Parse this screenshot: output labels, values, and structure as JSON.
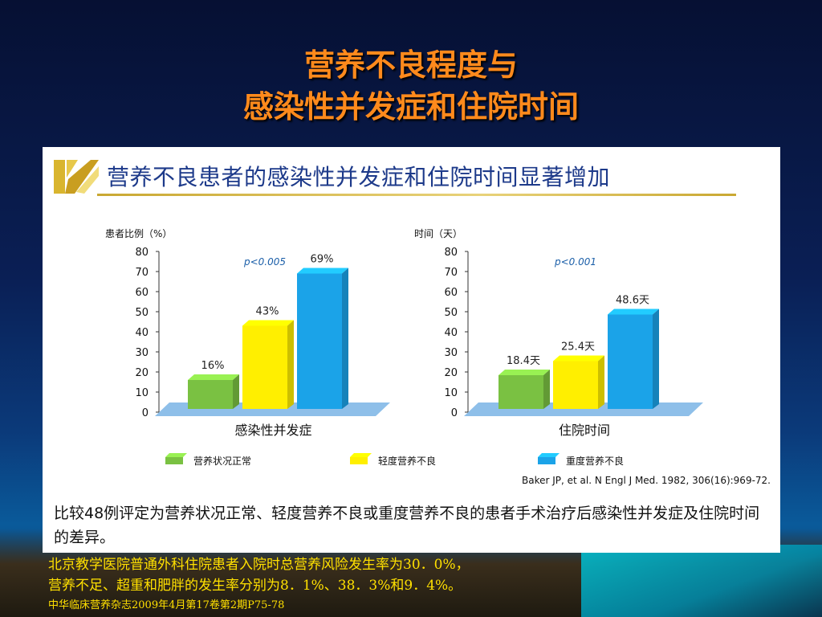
{
  "slide": {
    "title_line1": "营养不良程度与",
    "title_line2": "感染性并发症和住院时间"
  },
  "panel": {
    "heading": "营养不良患者的感染性并发症和住院时间显著增加",
    "citation": "Baker JP, et al. N Engl J Med. 1982, 306(16):969-72.",
    "caption": "比较48例评定为营养状况正常、轻度营养不良或重度营养不良的患者手术治疗后感染性并发症及住院时间的差异。"
  },
  "legend": [
    "营养状况正常",
    "轻度营养不良",
    "重度营养不良"
  ],
  "colors": {
    "normal": "#7ac142",
    "mild": "#ffef00",
    "severe": "#1ba3e8",
    "title": "#ff8a1c",
    "footer": "#ffe000"
  },
  "chart_data": [
    {
      "type": "bar",
      "ylabel": "患者比例（%）",
      "xlabel": "感染性并发症",
      "ylim": [
        0,
        80
      ],
      "yticks": [
        0,
        10,
        20,
        30,
        40,
        50,
        60,
        70,
        80
      ],
      "pvalue": "p<0.005",
      "categories": [
        "营养状况正常",
        "轻度营养不良",
        "重度营养不良"
      ],
      "values": [
        16,
        43,
        69
      ],
      "data_labels": [
        "16%",
        "43%",
        "69%"
      ]
    },
    {
      "type": "bar",
      "ylabel": "时间（天）",
      "xlabel": "住院时间",
      "ylim": [
        0,
        80
      ],
      "yticks": [
        0,
        10,
        20,
        30,
        40,
        50,
        60,
        70,
        80
      ],
      "pvalue": "p<0.001",
      "categories": [
        "营养状况正常",
        "轻度营养不良",
        "重度营养不良"
      ],
      "values": [
        18.4,
        25.4,
        48.6
      ],
      "data_labels": [
        "18.4天",
        "25.4天",
        "48.6天"
      ]
    }
  ],
  "footer": {
    "line1": "北京教学医院普通外科住院患者入院时总营养风险发生率为30．0%，",
    "line2": "营养不足、超重和肥胖的发生率分别为8．1%、38．3%和9．4%。",
    "source": "中华临床营养杂志2009年4月第17卷第2期P75-78"
  }
}
